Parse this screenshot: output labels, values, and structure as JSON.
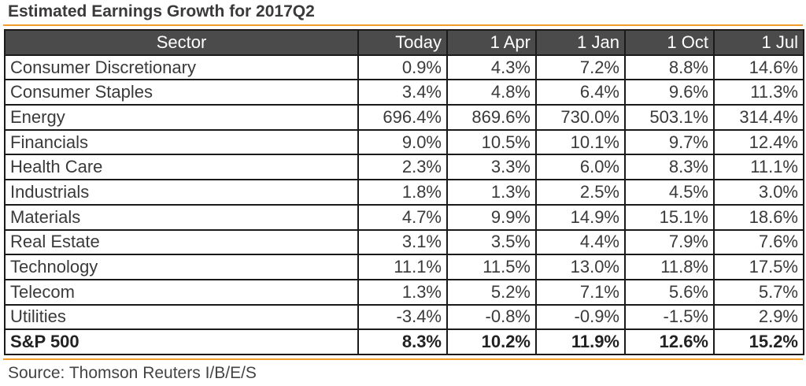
{
  "title": "Estimated Earnings Growth for  2017Q2",
  "columns": [
    "Sector",
    "Today",
    "1 Apr",
    "1 Jan",
    "1 Oct",
    "1 Jul"
  ],
  "rows": [
    {
      "sector": "Consumer Discretionary",
      "values": [
        "0.9%",
        "4.3%",
        "7.2%",
        "8.8%",
        "14.6%"
      ]
    },
    {
      "sector": "Consumer Staples",
      "values": [
        "3.4%",
        "4.8%",
        "6.4%",
        "9.6%",
        "11.3%"
      ]
    },
    {
      "sector": "Energy",
      "values": [
        "696.4%",
        "869.6%",
        "730.0%",
        "503.1%",
        "314.4%"
      ]
    },
    {
      "sector": "Financials",
      "values": [
        "9.0%",
        "10.5%",
        "10.1%",
        "9.7%",
        "12.4%"
      ]
    },
    {
      "sector": "Health Care",
      "values": [
        "2.3%",
        "3.3%",
        "6.0%",
        "8.3%",
        "11.1%"
      ]
    },
    {
      "sector": "Industrials",
      "values": [
        "1.8%",
        "1.3%",
        "2.5%",
        "4.5%",
        "3.0%"
      ]
    },
    {
      "sector": "Materials",
      "values": [
        "4.7%",
        "9.9%",
        "14.9%",
        "15.1%",
        "18.6%"
      ]
    },
    {
      "sector": "Real Estate",
      "values": [
        "3.1%",
        "3.5%",
        "4.4%",
        "7.9%",
        "7.6%"
      ]
    },
    {
      "sector": "Technology",
      "values": [
        "11.1%",
        "11.5%",
        "13.0%",
        "11.8%",
        "17.5%"
      ]
    },
    {
      "sector": "Telecom",
      "values": [
        "1.3%",
        "5.2%",
        "7.1%",
        "5.6%",
        "5.7%"
      ]
    },
    {
      "sector": "Utilities",
      "values": [
        "-3.4%",
        "-0.8%",
        "-0.9%",
        "-1.5%",
        "2.9%"
      ]
    }
  ],
  "total": {
    "sector": "S&P 500",
    "values": [
      "8.3%",
      "10.2%",
      "11.9%",
      "12.6%",
      "15.2%"
    ]
  },
  "source": "Source: Thomson Reuters I/B/E/S",
  "colors": {
    "accent_rule": "#f39a2d",
    "header_bg": "#4b4b4b",
    "header_text": "#ffffff"
  }
}
